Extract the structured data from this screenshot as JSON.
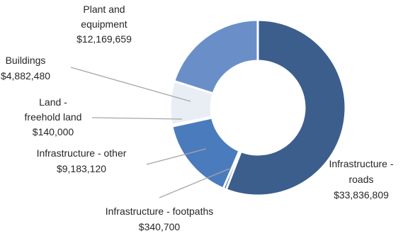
{
  "chart_data": {
    "type": "pie",
    "title": "",
    "donut": true,
    "start_angle_deg": 0,
    "direction": "clockwise",
    "slices": [
      {
        "label_lines": [
          "Infrastructure -",
          "roads",
          "$33,836,809"
        ],
        "name": "Infrastructure - roads",
        "value": 33836809,
        "color": "#3b5e8c"
      },
      {
        "label_lines": [
          "Infrastructure - footpaths",
          "$340,700"
        ],
        "name": "Infrastructure - footpaths",
        "value": 340700,
        "color": "#3d6aa6"
      },
      {
        "label_lines": [
          "Infrastructure - other",
          "$9,183,120"
        ],
        "name": "Infrastructure - other",
        "value": 9183120,
        "color": "#4a7bbd"
      },
      {
        "label_lines": [
          "Land -",
          "freehold land",
          "$140,000"
        ],
        "name": "Land - freehold land",
        "value": 140000,
        "color": "#dfe6f0"
      },
      {
        "label_lines": [
          "Buildings",
          "$4,882,480"
        ],
        "name": "Buildings",
        "value": 4882480,
        "color": "#e9eef5"
      },
      {
        "label_lines": [
          "Plant and",
          "equipment",
          "$12,169,659"
        ],
        "name": "Plant and equipment",
        "value": 12169659,
        "color": "#6a8fc8"
      }
    ]
  }
}
